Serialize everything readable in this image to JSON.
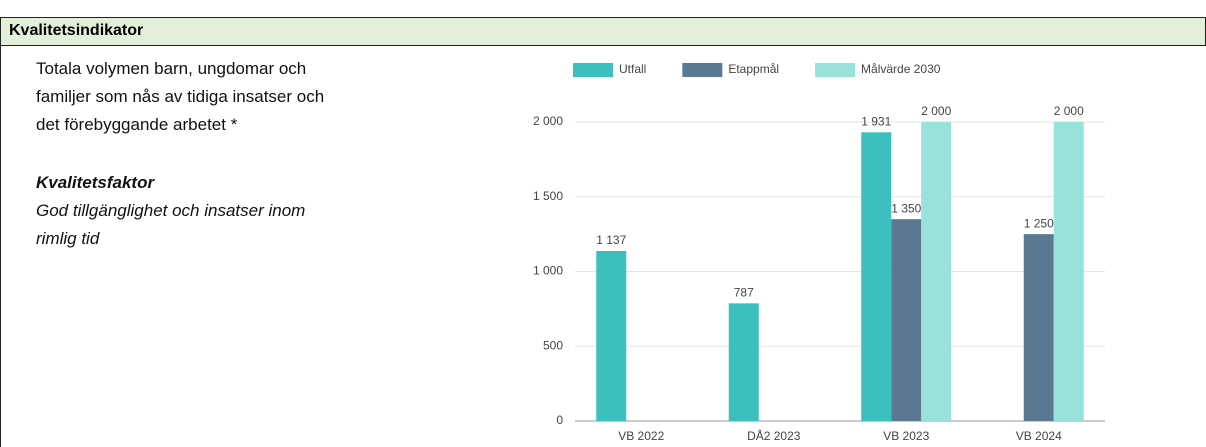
{
  "header": {
    "title": "Kvalitetsindikator"
  },
  "indicator": [
    "Totala volymen barn, ungdomar och",
    "familjer som nås av tidiga insatser och",
    "det förebyggande arbetet *"
  ],
  "factor": {
    "title": "Kvalitetsfaktor",
    "lines": [
      "God tillgänglighet och insatser inom",
      "rimlig tid"
    ]
  },
  "chart_data": {
    "type": "bar",
    "categories": [
      "VB 2022",
      "DÅ2 2023",
      "VB 2023",
      "VB 2024"
    ],
    "series": [
      {
        "name": "Utfall",
        "color": "#3bbfbf",
        "values": [
          1137,
          787,
          1931,
          null
        ],
        "value_labels": [
          "1 137",
          "787",
          "1 931",
          null
        ]
      },
      {
        "name": "Etappmål",
        "color": "#5a7891",
        "values": [
          null,
          null,
          1350,
          1250
        ],
        "value_labels": [
          null,
          null,
          "1 350",
          "1 250"
        ]
      },
      {
        "name": "Målvärde 2030",
        "color": "#99e2dc",
        "values": [
          null,
          null,
          2000,
          2000
        ],
        "value_labels": [
          null,
          null,
          "2 000",
          "2 000"
        ]
      }
    ],
    "ylim": [
      0,
      2000
    ],
    "yticks": [
      0,
      500,
      {
        "value": 1000,
        "label": "1 000"
      },
      {
        "value": 1500,
        "label": "1 500"
      },
      {
        "value": 2000,
        "label": "2 000"
      }
    ],
    "grid": true,
    "legend": "top"
  }
}
